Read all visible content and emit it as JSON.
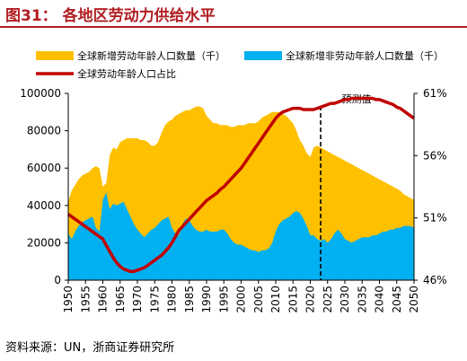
{
  "title": "图31：   各地区劳动力供给水平",
  "source": "资料来源：UN，浙商证券研究所",
  "colors": {
    "title": "#b01e22",
    "labor_area": "#ffc000",
    "nonlabor_area": "#00b0f0",
    "share_line": "#c00000"
  },
  "chart_data": {
    "type": "area",
    "x": [
      1950,
      1951,
      1952,
      1953,
      1954,
      1955,
      1956,
      1957,
      1958,
      1959,
      1960,
      1961,
      1962,
      1963,
      1964,
      1965,
      1966,
      1967,
      1968,
      1969,
      1970,
      1971,
      1972,
      1973,
      1974,
      1975,
      1976,
      1977,
      1978,
      1979,
      1980,
      1981,
      1982,
      1983,
      1984,
      1985,
      1986,
      1987,
      1988,
      1989,
      1990,
      1991,
      1992,
      1993,
      1994,
      1995,
      1996,
      1997,
      1998,
      1999,
      2000,
      2001,
      2002,
      2003,
      2004,
      2005,
      2006,
      2007,
      2008,
      2009,
      2010,
      2011,
      2012,
      2013,
      2014,
      2015,
      2016,
      2017,
      2018,
      2019,
      2020,
      2021,
      2022,
      2023,
      2024,
      2025,
      2026,
      2027,
      2028,
      2029,
      2030,
      2031,
      2032,
      2033,
      2034,
      2035,
      2036,
      2037,
      2038,
      2039,
      2040,
      2041,
      2042,
      2043,
      2044,
      2045,
      2046,
      2047,
      2048,
      2049,
      2050
    ],
    "series": [
      {
        "name": "全球新增劳动年龄人口数量（千）",
        "axis": "left",
        "values": [
          42000,
          48000,
          51000,
          54000,
          56000,
          57000,
          58000,
          60000,
          61000,
          60000,
          50000,
          52000,
          67000,
          71000,
          70000,
          74000,
          75000,
          76000,
          76000,
          76000,
          76000,
          75000,
          75000,
          74000,
          72000,
          72000,
          74000,
          79000,
          83000,
          85000,
          86000,
          88000,
          89000,
          90000,
          91000,
          91000,
          92000,
          93000,
          93000,
          92000,
          88000,
          86000,
          84000,
          84000,
          83000,
          83000,
          83000,
          82000,
          82000,
          83000,
          83000,
          83000,
          84000,
          84000,
          84000,
          85000,
          87000,
          88000,
          89000,
          90000,
          90000,
          90000,
          89000,
          88000,
          86000,
          84000,
          80000,
          75000,
          72000,
          68000,
          66000,
          71000,
          72000,
          71000,
          70000,
          69000,
          68000,
          67000,
          66000,
          65000,
          64000,
          63000,
          62000,
          61000,
          60000,
          59000,
          58000,
          57000,
          56000,
          55000,
          54000,
          53000,
          52000,
          51000,
          50000,
          49000,
          48000,
          46000,
          45000,
          44000,
          43000
        ]
      },
      {
        "name": "全球新增非劳动年龄人口数量（千）",
        "axis": "left",
        "values": [
          25000,
          22000,
          26000,
          29000,
          31000,
          32000,
          33000,
          34000,
          28000,
          26000,
          43000,
          47000,
          38000,
          41000,
          40000,
          41000,
          42000,
          38000,
          34000,
          30000,
          27000,
          25000,
          23000,
          25000,
          27000,
          28000,
          30000,
          32000,
          33000,
          34000,
          28000,
          25000,
          24000,
          30000,
          33000,
          32000,
          29000,
          27000,
          26000,
          26000,
          27000,
          26000,
          26000,
          26000,
          27000,
          27000,
          25000,
          22000,
          20000,
          19000,
          19000,
          18000,
          17000,
          16000,
          16000,
          15000,
          16000,
          16000,
          17000,
          20000,
          26000,
          30000,
          32000,
          33000,
          34000,
          36000,
          37000,
          36000,
          33000,
          29000,
          24000,
          24000,
          22000,
          21000,
          22000,
          20000,
          22000,
          25000,
          27000,
          25000,
          22000,
          21000,
          20000,
          21000,
          22000,
          23000,
          23000,
          23000,
          24000,
          24000,
          25000,
          26000,
          26000,
          27000,
          27000,
          28000,
          28000,
          29000,
          29000,
          29000,
          28000
        ]
      },
      {
        "name": "全球劳动年龄人口占比",
        "axis": "right",
        "values": [
          51.3,
          51.1,
          50.9,
          50.7,
          50.5,
          50.3,
          50.1,
          49.9,
          49.7,
          49.5,
          49.3,
          48.8,
          48.3,
          47.8,
          47.4,
          47.1,
          46.9,
          46.8,
          46.7,
          46.7,
          46.8,
          46.9,
          47.0,
          47.2,
          47.4,
          47.6,
          47.8,
          48.0,
          48.3,
          48.6,
          49.0,
          49.5,
          50.0,
          50.3,
          50.6,
          50.9,
          51.2,
          51.5,
          51.8,
          52.1,
          52.4,
          52.6,
          52.8,
          53.0,
          53.3,
          53.5,
          53.8,
          54.1,
          54.4,
          54.7,
          55.0,
          55.4,
          55.8,
          56.2,
          56.6,
          57.0,
          57.4,
          57.8,
          58.2,
          58.6,
          59.0,
          59.3,
          59.5,
          59.6,
          59.7,
          59.8,
          59.8,
          59.8,
          59.7,
          59.7,
          59.7,
          59.7,
          59.8,
          59.9,
          60.0,
          60.1,
          60.2,
          60.2,
          60.3,
          60.4,
          60.5,
          60.5,
          60.6,
          60.6,
          60.6,
          60.6,
          60.6,
          60.6,
          60.6,
          60.5,
          60.5,
          60.4,
          60.3,
          60.2,
          60.1,
          59.9,
          59.8,
          59.6,
          59.4,
          59.2,
          59.0
        ]
      }
    ],
    "xticks": [
      "1950",
      "1955",
      "1960",
      "1965",
      "1970",
      "1975",
      "1980",
      "1985",
      "1990",
      "1995",
      "2000",
      "2005",
      "2010",
      "2015",
      "2020",
      "2025",
      "2030",
      "2035",
      "2040",
      "2045",
      "2050"
    ],
    "yticks_left": [
      "0",
      "20000",
      "40000",
      "60000",
      "80000",
      "100000"
    ],
    "yticks_right": [
      "46%",
      "51%",
      "56%",
      "61%"
    ],
    "ylim_left": [
      0,
      100000
    ],
    "ylim_right": [
      46,
      61
    ],
    "projection_year": 2023,
    "annotation": "预测值",
    "legend": [
      "全球新增劳动年龄人口数量（千）",
      "全球新增非劳动年龄人口数量（千）",
      "全球劳动年龄人口占比"
    ],
    "legend_placement": "top",
    "grid": false
  }
}
